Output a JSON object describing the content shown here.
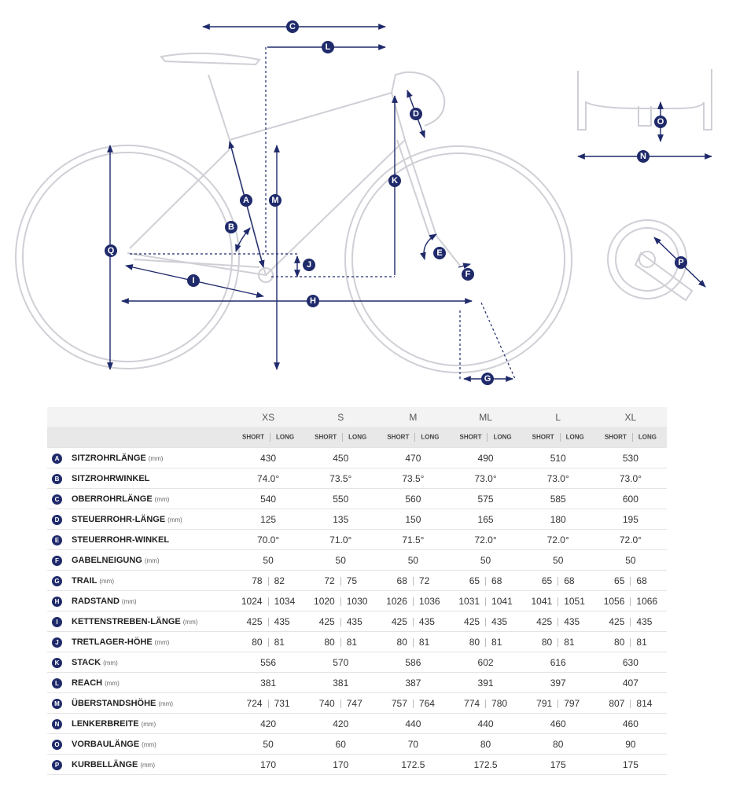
{
  "diagram": {
    "labels": [
      "Q"
    ]
  },
  "table": {
    "sizes": [
      "XS",
      "S",
      "M",
      "ML",
      "L",
      "XL"
    ],
    "variants": [
      "SHORT",
      "LONG"
    ],
    "rows": [
      {
        "letter": "A",
        "name": "SITZROHRLÄNGE",
        "unit": "(mm)",
        "values": [
          "430",
          "450",
          "470",
          "490",
          "510",
          "530"
        ]
      },
      {
        "letter": "B",
        "name": "SITZROHRWINKEL",
        "values": [
          "74.0°",
          "73.5°",
          "73.5°",
          "73.0°",
          "73.0°",
          "73.0°"
        ]
      },
      {
        "letter": "C",
        "name": "OBERROHRLÄNGE",
        "unit": "(mm)",
        "values": [
          "540",
          "550",
          "560",
          "575",
          "585",
          "600"
        ]
      },
      {
        "letter": "D",
        "name": "STEUERROHR-LÄNGE",
        "unit": "(mm)",
        "values": [
          "125",
          "135",
          "150",
          "165",
          "180",
          "195"
        ]
      },
      {
        "letter": "E",
        "name": "STEUERROHR-WINKEL",
        "values": [
          "70.0°",
          "71.0°",
          "71.5°",
          "72.0°",
          "72.0°",
          "72.0°"
        ]
      },
      {
        "letter": "F",
        "name": "GABELNEIGUNG",
        "unit": "(mm)",
        "values": [
          "50",
          "50",
          "50",
          "50",
          "50",
          "50"
        ]
      },
      {
        "letter": "G",
        "name": "TRAIL",
        "unit": "(mm)",
        "values": [
          [
            "78",
            "82"
          ],
          [
            "72",
            "75"
          ],
          [
            "68",
            "72"
          ],
          [
            "65",
            "68"
          ],
          [
            "65",
            "68"
          ],
          [
            "65",
            "68"
          ]
        ]
      },
      {
        "letter": "H",
        "name": "RADSTAND",
        "unit": "(mm)",
        "values": [
          [
            "1024",
            "1034"
          ],
          [
            "1020",
            "1030"
          ],
          [
            "1026",
            "1036"
          ],
          [
            "1031",
            "1041"
          ],
          [
            "1041",
            "1051"
          ],
          [
            "1056",
            "1066"
          ]
        ]
      },
      {
        "letter": "I",
        "name": "KETTENSTREBEN-LÄNGE",
        "unit": "(mm)",
        "values": [
          [
            "425",
            "435"
          ],
          [
            "425",
            "435"
          ],
          [
            "425",
            "435"
          ],
          [
            "425",
            "435"
          ],
          [
            "425",
            "435"
          ],
          [
            "425",
            "435"
          ]
        ]
      },
      {
        "letter": "J",
        "name": "TRETLAGER-HÖHE",
        "unit": "(mm)",
        "values": [
          [
            "80",
            "81"
          ],
          [
            "80",
            "81"
          ],
          [
            "80",
            "81"
          ],
          [
            "80",
            "81"
          ],
          [
            "80",
            "81"
          ],
          [
            "80",
            "81"
          ]
        ]
      },
      {
        "letter": "K",
        "name": "STACK",
        "unit": "(mm)",
        "values": [
          "556",
          "570",
          "586",
          "602",
          "616",
          "630"
        ]
      },
      {
        "letter": "L",
        "name": "REACH",
        "unit": "(mm)",
        "values": [
          "381",
          "381",
          "387",
          "391",
          "397",
          "407"
        ]
      },
      {
        "letter": "M",
        "name": "ÜBERSTANDSHÖHE",
        "unit": "(mm)",
        "values": [
          [
            "724",
            "731"
          ],
          [
            "740",
            "747"
          ],
          [
            "757",
            "764"
          ],
          [
            "774",
            "780"
          ],
          [
            "791",
            "797"
          ],
          [
            "807",
            "814"
          ]
        ]
      },
      {
        "letter": "N",
        "name": "LENKERBREITE",
        "unit": "(mm)",
        "values": [
          "420",
          "420",
          "440",
          "440",
          "460",
          "460"
        ]
      },
      {
        "letter": "O",
        "name": "VORBAULÄNGE",
        "unit": "(mm)",
        "values": [
          "50",
          "60",
          "70",
          "80",
          "80",
          "90"
        ]
      },
      {
        "letter": "P",
        "name": "KURBELLÄNGE",
        "unit": "(mm)",
        "values": [
          "170",
          "170",
          "172.5",
          "172.5",
          "175",
          "175"
        ]
      }
    ]
  }
}
